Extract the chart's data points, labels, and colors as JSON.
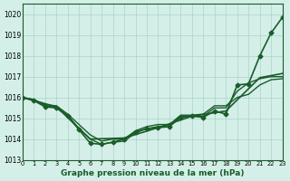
{
  "bg_color": "#d4efe8",
  "grid_color": "#aad4c8",
  "line_color": "#1a5c2a",
  "xlabel": "Graphe pression niveau de la mer (hPa)",
  "xlim": [
    0,
    23
  ],
  "ylim": [
    1013,
    1020.5
  ],
  "yticks": [
    1013,
    1014,
    1015,
    1016,
    1017,
    1018,
    1019,
    1020
  ],
  "xticks": [
    0,
    1,
    2,
    3,
    4,
    5,
    6,
    7,
    8,
    9,
    10,
    11,
    12,
    13,
    14,
    15,
    16,
    17,
    18,
    19,
    20,
    21,
    22,
    23
  ],
  "series": [
    {
      "x": [
        0,
        1,
        2,
        3,
        4,
        5,
        6,
        7,
        8,
        9,
        10,
        11,
        12,
        13,
        14,
        15,
        16,
        17,
        18,
        19,
        20,
        21,
        22,
        23
      ],
      "y": [
        1016.0,
        1015.85,
        1015.55,
        1015.5,
        1015.1,
        1014.45,
        1013.8,
        1013.75,
        1013.85,
        1014.0,
        1014.35,
        1014.5,
        1014.55,
        1014.6,
        1015.05,
        1015.1,
        1015.05,
        1015.35,
        1015.2,
        1016.6,
        1016.65,
        1018.0,
        1019.1,
        1019.85
      ],
      "marker": "D",
      "markersize": 2.5,
      "linewidth": 1.2
    },
    {
      "x": [
        0,
        1,
        2,
        3,
        4,
        5,
        6,
        7,
        8,
        9,
        10,
        11,
        12,
        13,
        14,
        15,
        16,
        17,
        18,
        19,
        20,
        21,
        22,
        23
      ],
      "y": [
        1016.0,
        1015.9,
        1015.6,
        1015.55,
        1015.15,
        1014.5,
        1014.0,
        1013.75,
        1013.85,
        1013.9,
        1014.3,
        1014.5,
        1014.6,
        1014.65,
        1015.1,
        1015.1,
        1015.1,
        1015.5,
        1015.5,
        1016.3,
        1016.7,
        1016.9,
        1017.0,
        1017.0
      ],
      "marker": null,
      "markersize": 0,
      "linewidth": 1.0
    },
    {
      "x": [
        0,
        1,
        2,
        3,
        4,
        5,
        6,
        7,
        8,
        9,
        10,
        11,
        12,
        13,
        14,
        15,
        16,
        17,
        18,
        19,
        20,
        21,
        22,
        23
      ],
      "y": [
        1016.0,
        1015.9,
        1015.65,
        1015.6,
        1015.2,
        1014.7,
        1014.2,
        1013.9,
        1014.0,
        1014.0,
        1014.4,
        1014.6,
        1014.7,
        1014.7,
        1015.15,
        1015.15,
        1015.2,
        1015.6,
        1015.6,
        1016.0,
        1016.15,
        1016.6,
        1016.85,
        1016.9
      ],
      "marker": null,
      "markersize": 0,
      "linewidth": 1.0
    },
    {
      "x": [
        0,
        3,
        6,
        9,
        12,
        15,
        18,
        21,
        23
      ],
      "y": [
        1016.0,
        1015.55,
        1014.0,
        1014.05,
        1014.55,
        1015.1,
        1015.35,
        1016.95,
        1017.15
      ],
      "marker": null,
      "markersize": 0,
      "linewidth": 1.2
    }
  ]
}
